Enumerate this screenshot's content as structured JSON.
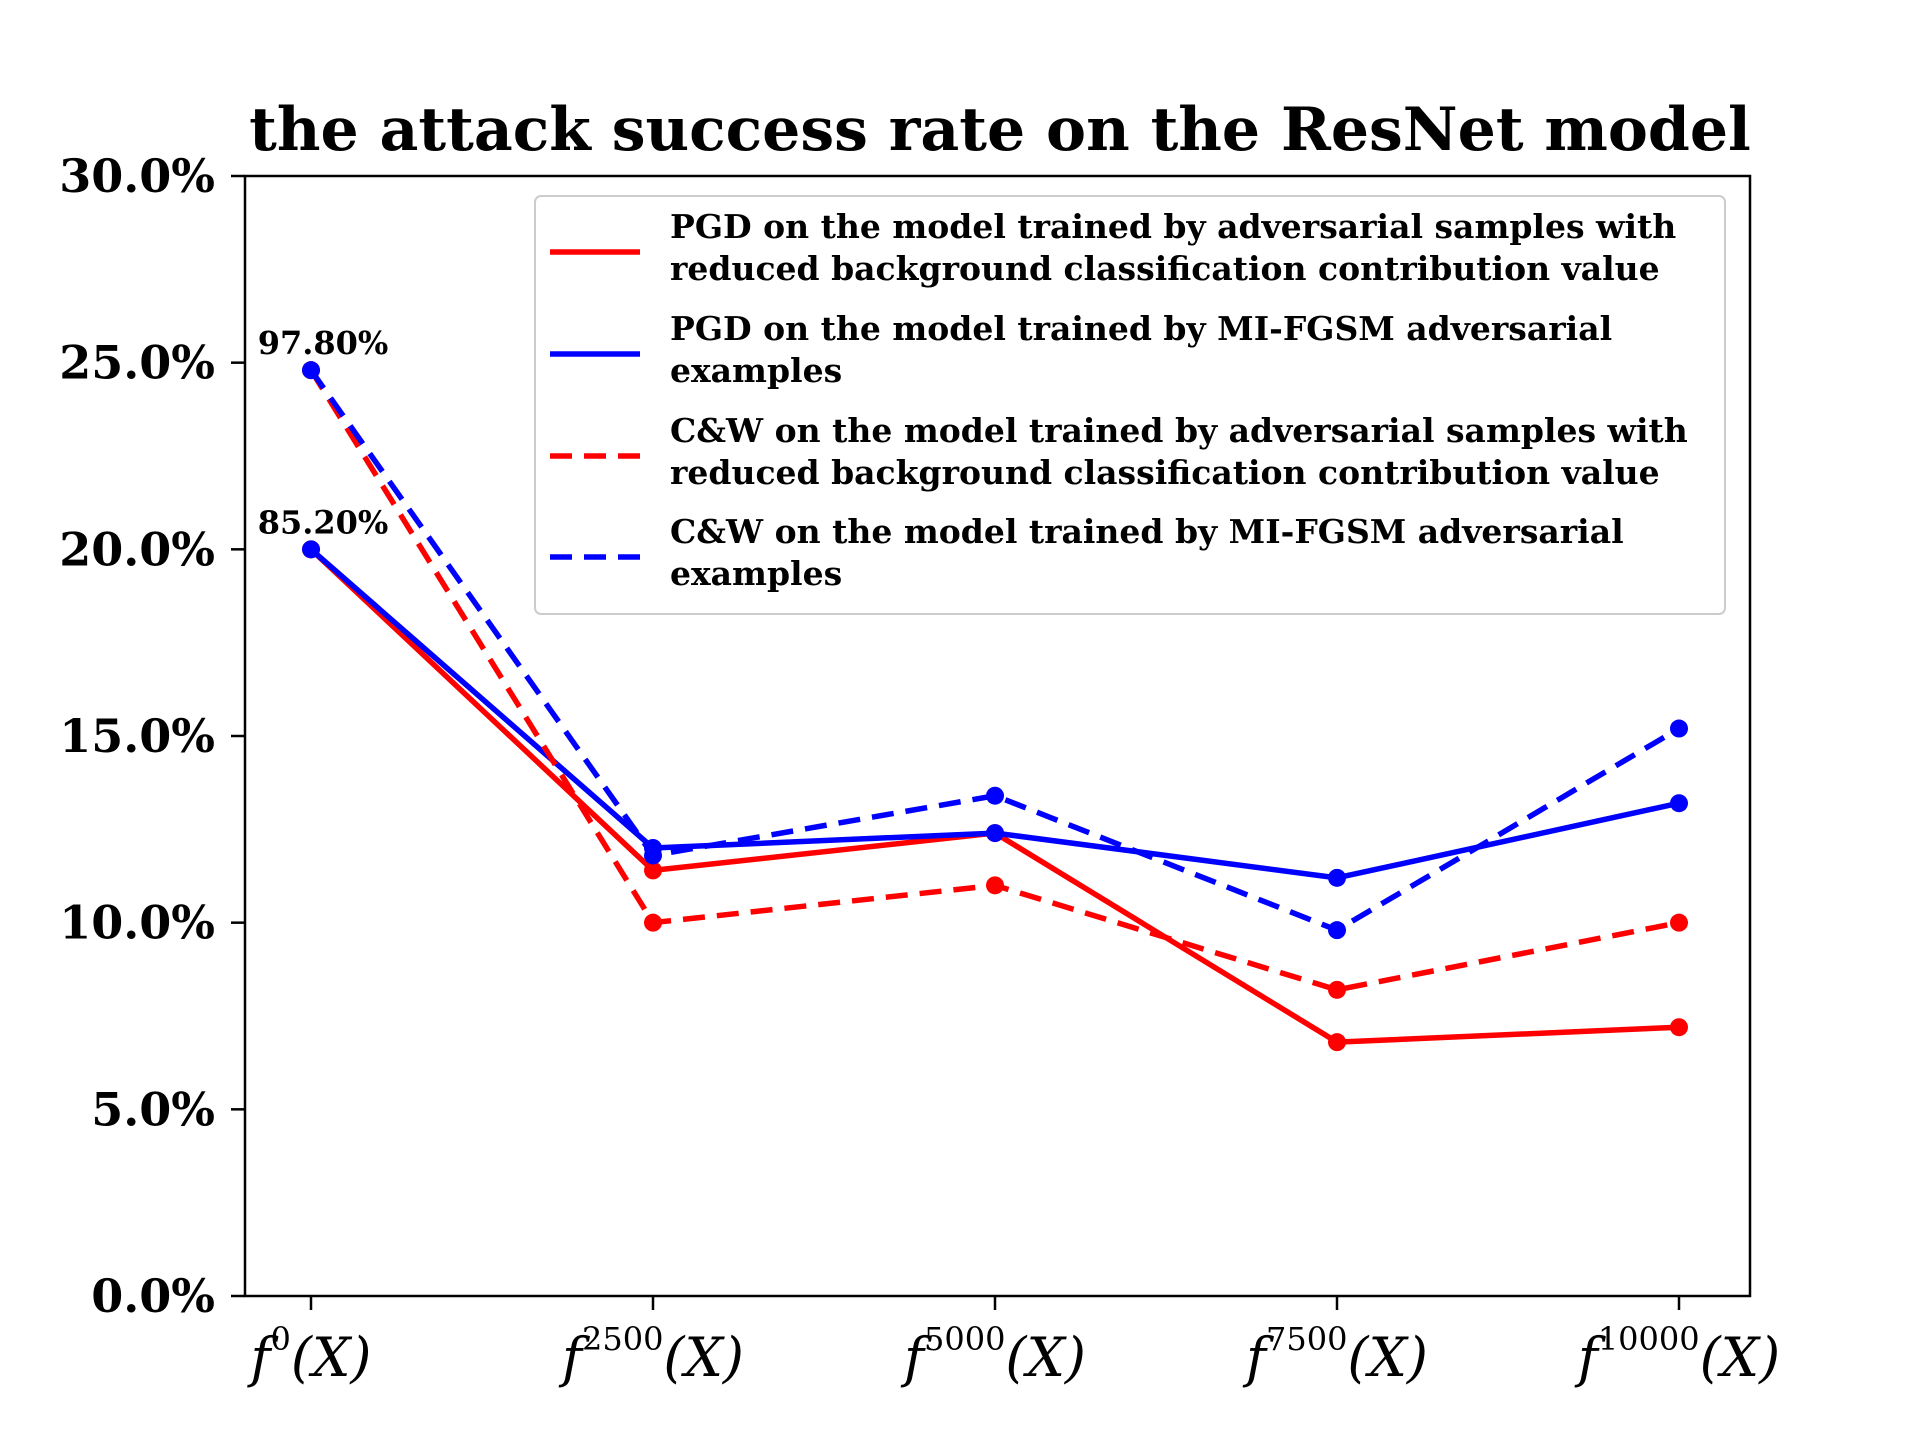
{
  "chart_data": {
    "type": "line",
    "title": "the attack success rate on the ResNet model",
    "xlabel": "",
    "ylabel": "",
    "categories": [
      {
        "base": "f",
        "sup": "0",
        "arg": "(X)"
      },
      {
        "base": "f",
        "sup": "2500",
        "arg": "(X)"
      },
      {
        "base": "f",
        "sup": "5000",
        "arg": "(X)"
      },
      {
        "base": "f",
        "sup": "7500",
        "arg": "(X)"
      },
      {
        "base": "f",
        "sup": "10000",
        "arg": "(X)"
      }
    ],
    "ylim": [
      0,
      30
    ],
    "yticks": [
      "0.0%",
      "5.0%",
      "10.0%",
      "15.0%",
      "20.0%",
      "25.0%",
      "30.0%"
    ],
    "grid": false,
    "legend_position": "top-right",
    "series": [
      {
        "name": "PGD on the model trained by adversarial samples with reduced background classification contribution value",
        "legend_lines": [
          "PGD on the model trained by adversarial samples with",
          "reduced background classification contribution value"
        ],
        "values": [
          20.0,
          11.4,
          12.4,
          6.8,
          7.2
        ],
        "color": "#ff0000",
        "dash": "solid"
      },
      {
        "name": "PGD on the model trained by MI-FGSM adversarial examples",
        "legend_lines": [
          "PGD on the model trained by MI-FGSM adversarial",
          "examples"
        ],
        "values": [
          20.0,
          12.0,
          12.4,
          11.2,
          13.2
        ],
        "color": "#0000ff",
        "dash": "solid"
      },
      {
        "name": "C&W on the model trained by adversarial samples with reduced background classification contribution value",
        "legend_lines": [
          "C&W on the model trained by adversarial samples with",
          "reduced background classification contribution value"
        ],
        "values": [
          24.8,
          10.0,
          11.0,
          8.2,
          10.0
        ],
        "color": "#ff0000",
        "dash": "dashed"
      },
      {
        "name": "C&W on the model trained by MI-FGSM adversarial examples",
        "legend_lines": [
          "C&W on the model trained by MI-FGSM adversarial",
          "examples"
        ],
        "values": [
          24.8,
          11.8,
          13.4,
          9.8,
          15.2
        ],
        "color": "#0000ff",
        "dash": "dashed"
      }
    ],
    "annotations": [
      {
        "text": "97.80%",
        "x_index": 0,
        "y": 24.8
      },
      {
        "text": "85.20%",
        "x_index": 0,
        "y": 20.0
      }
    ]
  }
}
